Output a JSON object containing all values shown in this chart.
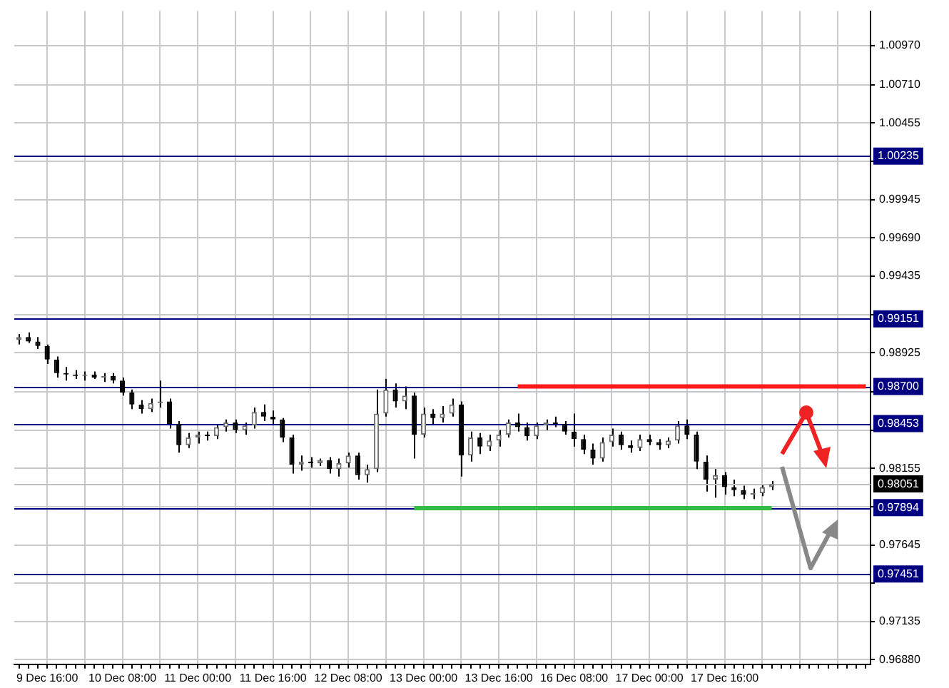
{
  "chart_data": {
    "type": "candlestick",
    "categories": [
      null,
      null,
      null,
      "9 Dec 16:00",
      null,
      null,
      null,
      null,
      null,
      null,
      null,
      "10 Dec 08:00",
      null,
      null,
      null,
      null,
      null,
      null,
      null,
      "11 Dec 00:00",
      null,
      null,
      null,
      null,
      null,
      null,
      null,
      "11 Dec 16:00",
      null,
      null,
      null,
      null,
      null,
      null,
      null,
      "12 Dec 08:00",
      null,
      null,
      null,
      null,
      null,
      null,
      null,
      "13 Dec 00:00",
      null,
      null,
      null,
      null,
      null,
      null,
      null,
      "13 Dec 16:00",
      null,
      null,
      null,
      null,
      null,
      null,
      null,
      "16 Dec 08:00",
      null,
      null,
      null,
      null,
      null,
      null,
      null,
      "17 Dec 00:00",
      null,
      null,
      null,
      null,
      null,
      null,
      null,
      "17 Dec 16:00",
      null,
      null,
      null,
      null,
      null,
      null,
      null,
      null,
      null,
      null,
      null,
      null,
      null,
      null,
      null
    ],
    "ohlc": [
      [
        0.9901,
        0.9905,
        0.9898,
        0.9903
      ],
      [
        0.9903,
        0.9906,
        0.9899,
        0.99
      ],
      [
        0.99,
        0.9903,
        0.9895,
        0.9897
      ],
      [
        0.9897,
        0.9898,
        0.9885,
        0.9888
      ],
      [
        0.9888,
        0.989,
        0.9876,
        0.9879
      ],
      [
        0.9879,
        0.9883,
        0.9874,
        0.9878
      ],
      [
        0.9878,
        0.9881,
        0.9875,
        0.9877
      ],
      [
        0.9877,
        0.988,
        0.9874,
        0.9878
      ],
      [
        0.9878,
        0.988,
        0.9875,
        0.9876
      ],
      [
        0.9876,
        0.9879,
        0.9873,
        0.9877
      ],
      [
        0.9877,
        0.9879,
        0.9872,
        0.9874
      ],
      [
        0.9874,
        0.9876,
        0.9864,
        0.9866
      ],
      [
        0.9866,
        0.9868,
        0.9855,
        0.9858
      ],
      [
        0.9858,
        0.9861,
        0.9852,
        0.9855
      ],
      [
        0.9855,
        0.9862,
        0.9853,
        0.9859
      ],
      [
        0.9859,
        0.9874,
        0.9856,
        0.986
      ],
      [
        0.986,
        0.9862,
        0.9842,
        0.9845
      ],
      [
        0.9845,
        0.9847,
        0.9826,
        0.9831
      ],
      [
        0.9831,
        0.9839,
        0.9829,
        0.9836
      ],
      [
        0.9836,
        0.984,
        0.9832,
        0.9838
      ],
      [
        0.9838,
        0.984,
        0.9834,
        0.9837
      ],
      [
        0.9837,
        0.9845,
        0.9835,
        0.9843
      ],
      [
        0.9843,
        0.9848,
        0.984,
        0.9846
      ],
      [
        0.9846,
        0.9848,
        0.9839,
        0.9841
      ],
      [
        0.9841,
        0.9846,
        0.9838,
        0.9844
      ],
      [
        0.9844,
        0.9856,
        0.9842,
        0.9853
      ],
      [
        0.9853,
        0.9858,
        0.9847,
        0.985
      ],
      [
        0.985,
        0.9854,
        0.9845,
        0.9848
      ],
      [
        0.9848,
        0.9849,
        0.9833,
        0.9836
      ],
      [
        0.9836,
        0.9838,
        0.9812,
        0.9818
      ],
      [
        0.9818,
        0.9824,
        0.9814,
        0.982
      ],
      [
        0.982,
        0.9823,
        0.9816,
        0.9819
      ],
      [
        0.9819,
        0.9822,
        0.9817,
        0.9821
      ],
      [
        0.9821,
        0.9823,
        0.9812,
        0.9815
      ],
      [
        0.9815,
        0.9822,
        0.981,
        0.9819
      ],
      [
        0.9819,
        0.9826,
        0.9816,
        0.9824
      ],
      [
        0.9824,
        0.9826,
        0.9808,
        0.9811
      ],
      [
        0.9811,
        0.9818,
        0.9806,
        0.9815
      ],
      [
        0.9815,
        0.9868,
        0.9813,
        0.9852
      ],
      [
        0.9852,
        0.9875,
        0.985,
        0.9868
      ],
      [
        0.9868,
        0.9872,
        0.9856,
        0.986
      ],
      [
        0.986,
        0.987,
        0.9855,
        0.9864
      ],
      [
        0.9864,
        0.9866,
        0.9822,
        0.9838
      ],
      [
        0.9838,
        0.9856,
        0.9836,
        0.9852
      ],
      [
        0.9852,
        0.9855,
        0.9845,
        0.9849
      ],
      [
        0.9849,
        0.9857,
        0.9846,
        0.9852
      ],
      [
        0.9852,
        0.9862,
        0.985,
        0.9858
      ],
      [
        0.9858,
        0.986,
        0.981,
        0.9824
      ],
      [
        0.9824,
        0.984,
        0.982,
        0.9836
      ],
      [
        0.9836,
        0.9839,
        0.9825,
        0.983
      ],
      [
        0.983,
        0.9838,
        0.9827,
        0.9834
      ],
      [
        0.9834,
        0.9841,
        0.983,
        0.9838
      ],
      [
        0.9838,
        0.9848,
        0.9836,
        0.9846
      ],
      [
        0.9846,
        0.9852,
        0.984,
        0.9843
      ],
      [
        0.9843,
        0.9846,
        0.9834,
        0.9837
      ],
      [
        0.9837,
        0.9846,
        0.9835,
        0.9844
      ],
      [
        0.9844,
        0.9848,
        0.9841,
        0.9846
      ],
      [
        0.9846,
        0.985,
        0.9843,
        0.9845
      ],
      [
        0.9845,
        0.9847,
        0.9838,
        0.984
      ],
      [
        0.984,
        0.9852,
        0.983,
        0.9835
      ],
      [
        0.9835,
        0.9838,
        0.9825,
        0.9828
      ],
      [
        0.9828,
        0.9832,
        0.9818,
        0.9822
      ],
      [
        0.9822,
        0.9836,
        0.982,
        0.9833
      ],
      [
        0.9833,
        0.9842,
        0.983,
        0.9838
      ],
      [
        0.9838,
        0.984,
        0.9828,
        0.9831
      ],
      [
        0.9831,
        0.9834,
        0.9826,
        0.9829
      ],
      [
        0.9829,
        0.9838,
        0.9827,
        0.9835
      ],
      [
        0.9835,
        0.9838,
        0.9831,
        0.9833
      ],
      [
        0.9833,
        0.9835,
        0.9828,
        0.9831
      ],
      [
        0.9831,
        0.9836,
        0.9829,
        0.9834
      ],
      [
        0.9834,
        0.9847,
        0.9832,
        0.9844
      ],
      [
        0.9844,
        0.9848,
        0.9835,
        0.9838
      ],
      [
        0.9838,
        0.984,
        0.9815,
        0.982
      ],
      [
        0.982,
        0.9824,
        0.98,
        0.9808
      ],
      [
        0.9808,
        0.9815,
        0.9796,
        0.9811
      ],
      [
        0.9811,
        0.9813,
        0.9798,
        0.9803
      ],
      [
        0.9803,
        0.9808,
        0.9797,
        0.9801
      ],
      [
        0.9801,
        0.9804,
        0.9795,
        0.9798
      ],
      [
        0.9798,
        0.9802,
        0.9795,
        0.9799
      ],
      [
        0.9799,
        0.9805,
        0.9797,
        0.9803
      ],
      [
        0.9803,
        0.9807,
        0.9801,
        0.9805
      ],
      null,
      null,
      null,
      null,
      null,
      null,
      null,
      null,
      null,
      null
    ],
    "series": [
      {
        "type": "line",
        "color": "#ff1a1a",
        "values": [
          null,
          null,
          null,
          null,
          null,
          null,
          null,
          null,
          null,
          null,
          null,
          null,
          null,
          null,
          null,
          null,
          null,
          null,
          null,
          null,
          null,
          null,
          null,
          null,
          null,
          null,
          null,
          null,
          null,
          null,
          null,
          null,
          null,
          null,
          null,
          null,
          null,
          null,
          null,
          null,
          null,
          null,
          null,
          null,
          null,
          null,
          null,
          null,
          null,
          null,
          null,
          null,
          null,
          0.987,
          0.987,
          0.987,
          0.987,
          0.987,
          0.987,
          0.987,
          0.987,
          0.987,
          0.987,
          0.987,
          0.987,
          0.987,
          0.987,
          0.987,
          0.987,
          0.987,
          0.987,
          0.987,
          0.987,
          0.987,
          0.987,
          0.987,
          0.987,
          0.987,
          0.987,
          0.987,
          0.987,
          0.987,
          0.987,
          0.987,
          0.987,
          0.987,
          0.987,
          0.987,
          0.987,
          0.987,
          0.987
        ]
      },
      {
        "type": "line",
        "color": "#33bb44",
        "values": [
          null,
          null,
          null,
          null,
          null,
          null,
          null,
          null,
          null,
          null,
          null,
          null,
          null,
          null,
          null,
          null,
          null,
          null,
          null,
          null,
          null,
          null,
          null,
          null,
          null,
          null,
          null,
          null,
          null,
          null,
          null,
          null,
          null,
          null,
          null,
          null,
          null,
          null,
          null,
          null,
          null,
          null,
          0.9789,
          0.9789,
          0.9789,
          0.9789,
          0.9789,
          0.9789,
          0.9789,
          0.9789,
          0.9789,
          0.9789,
          0.9789,
          0.9789,
          0.9789,
          0.9789,
          0.9789,
          0.9789,
          0.9789,
          0.9789,
          0.9789,
          0.9789,
          0.9789,
          0.9789,
          0.9789,
          0.9789,
          0.9789,
          0.9789,
          0.9789,
          0.9789,
          0.9789,
          0.9789,
          0.9789,
          0.9789,
          0.9789,
          0.9789,
          0.9789,
          0.9789,
          0.9789,
          0.9789,
          0.9789,
          null,
          null,
          null,
          null,
          null,
          null,
          null,
          null,
          null,
          null
        ]
      }
    ],
    "ylim": [
      0.9685,
      1.012
    ],
    "yticks": [
      {
        "value": 1.0097,
        "label": "1.00970"
      },
      {
        "value": 1.0071,
        "label": "1.00710"
      },
      {
        "value": 1.00455,
        "label": "1.00455"
      },
      {
        "value": 1.002,
        "label": null
      },
      {
        "value": 0.99945,
        "label": "0.99945"
      },
      {
        "value": 0.9969,
        "label": "0.99690"
      },
      {
        "value": 0.99435,
        "label": "0.99435"
      },
      {
        "value": 0.9918,
        "label": null
      },
      {
        "value": 0.98925,
        "label": "0.98925"
      },
      {
        "value": 0.98665,
        "label": null
      },
      {
        "value": 0.9841,
        "label": null
      },
      {
        "value": 0.98155,
        "label": "0.98155"
      },
      {
        "value": 0.979,
        "label": null
      },
      {
        "value": 0.97645,
        "label": "0.97645"
      },
      {
        "value": 0.9739,
        "label": null
      },
      {
        "value": 0.97135,
        "label": "0.97135"
      },
      {
        "value": 0.9688,
        "label": "0.96880"
      }
    ],
    "ref_lines": [
      {
        "axis": "y",
        "value": 1.00235,
        "label": "1.00235",
        "color": "#000080"
      },
      {
        "axis": "y",
        "value": 0.99151,
        "label": "0.99151",
        "color": "#000080"
      },
      {
        "axis": "y",
        "value": 0.987,
        "label": "0.98700",
        "color": "#000080"
      },
      {
        "axis": "y",
        "value": 0.98453,
        "label": "0.98453",
        "color": "#000080"
      },
      {
        "axis": "y",
        "value": 0.98051,
        "label": "0.98051",
        "color": "#c0c0c0"
      },
      {
        "axis": "y",
        "value": 0.97894,
        "label": "0.97894",
        "color": "#000080"
      },
      {
        "axis": "y",
        "value": 0.97451,
        "label": "0.97451",
        "color": "#000080"
      }
    ],
    "grid": true
  }
}
